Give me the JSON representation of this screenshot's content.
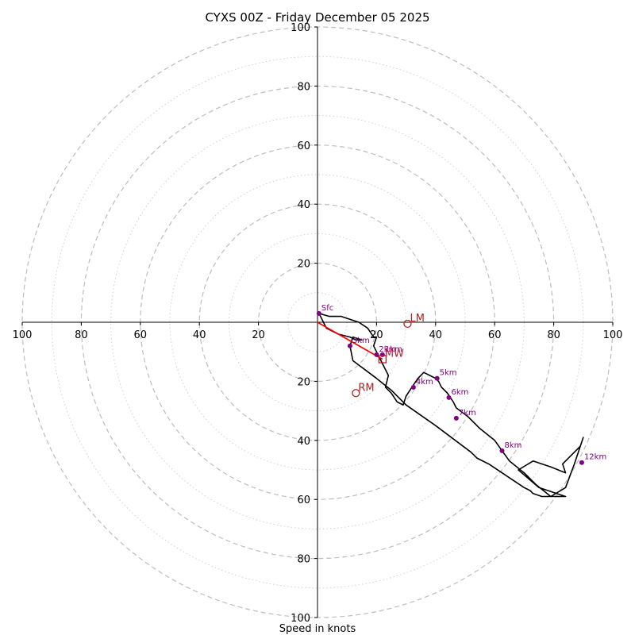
{
  "chart_data": {
    "type": "scatter",
    "title": "CYXS 00Z - Friday December 05 2025",
    "xlabel": "Speed in knots",
    "ylabel": "",
    "xlim": [
      -100,
      100
    ],
    "ylim": [
      -100,
      100
    ],
    "rings_major": [
      20,
      40,
      60,
      80,
      100
    ],
    "rings_minor": [
      10,
      30,
      50,
      70,
      90
    ],
    "ticks": {
      "x_neg": [
        "100",
        "80",
        "60",
        "40",
        "20"
      ],
      "x_pos": [
        "20",
        "40",
        "60",
        "80",
        "100"
      ],
      "y_pos": [
        "20",
        "40",
        "60",
        "80",
        "100"
      ],
      "y_neg": [
        "20",
        "40",
        "60",
        "80",
        "100"
      ],
      "values": [
        20,
        40,
        60,
        80,
        100
      ]
    },
    "hodograph": {
      "u": [
        0.5,
        4,
        8,
        14,
        17,
        19,
        20,
        19,
        20,
        21,
        22,
        23,
        24,
        23,
        25,
        27,
        29,
        30,
        32,
        34,
        36,
        38,
        40,
        41,
        42,
        44,
        46,
        47,
        51,
        55,
        60,
        65,
        70,
        74,
        79,
        84,
        87,
        90,
        89,
        85,
        83,
        84,
        79,
        73,
        68,
        75,
        84,
        76,
        73,
        72,
        70,
        64,
        58,
        54,
        52,
        40,
        30,
        25,
        20,
        12,
        11,
        12,
        15,
        13,
        11,
        7,
        3,
        0.5
      ],
      "v": [
        3,
        2,
        2,
        0,
        -2,
        -5,
        -5,
        -8,
        -10,
        -12,
        -14,
        -16,
        -18,
        -22,
        -24,
        -27,
        -28,
        -25,
        -22,
        -19,
        -17,
        -18,
        -19,
        -20,
        -22,
        -24,
        -27,
        -29,
        -32,
        -36,
        -40,
        -47,
        -51,
        -55,
        -59,
        -56,
        -48,
        -39,
        -42,
        -46,
        -48,
        -51,
        -49,
        -47,
        -50,
        -56,
        -59,
        -59,
        -58,
        -57,
        -56,
        -52,
        -48,
        -46,
        -44,
        -35,
        -28,
        -23,
        -19,
        -13,
        -8,
        -5,
        -6,
        -6,
        -5,
        -4,
        -2,
        3
      ],
      "color": "#000000"
    },
    "height_markers": [
      {
        "label": "Sfc",
        "u": 0.5,
        "v": 3
      },
      {
        "label": "1km",
        "u": 22,
        "v": -11
      },
      {
        "label": "2km",
        "u": 20,
        "v": -11
      },
      {
        "label": "3km",
        "u": 11,
        "v": -8
      },
      {
        "label": "4km",
        "u": 32.5,
        "v": -22
      },
      {
        "label": "5km",
        "u": 40.5,
        "v": -19
      },
      {
        "label": "6km",
        "u": 44.5,
        "v": -25.5
      },
      {
        "label": "7km",
        "u": 47,
        "v": -32.5
      },
      {
        "label": "8km",
        "u": 62.5,
        "v": -43.5
      },
      {
        "label": "12km",
        "u": 89.5,
        "v": -47.5
      }
    ],
    "marker_color": "#800080",
    "storm_motions": [
      {
        "label": "LM",
        "u": 30.5,
        "v": -0.5,
        "shape": "circle"
      },
      {
        "label": "RM",
        "u": 13,
        "v": -24,
        "shape": "circle"
      },
      {
        "label": "MW",
        "u": 22,
        "v": -12.5,
        "shape": "square"
      }
    ],
    "storm_color": "#b22222",
    "shear_vector": {
      "from": [
        0,
        0
      ],
      "to": [
        22,
        -12.5
      ],
      "color": "#ff0000"
    },
    "grid": true
  }
}
